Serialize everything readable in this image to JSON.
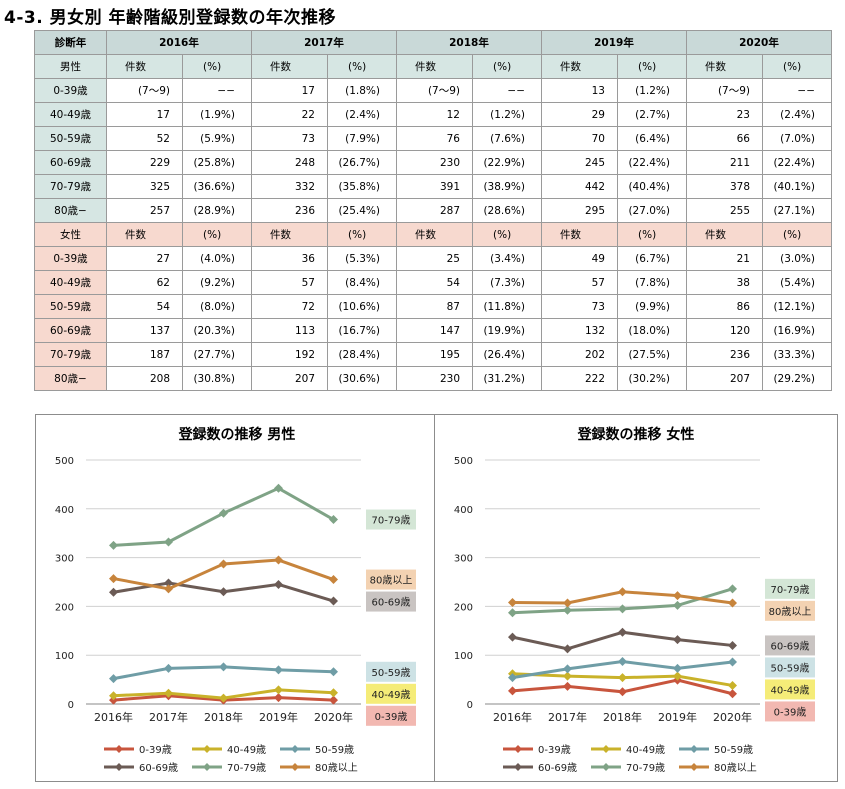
{
  "page": {
    "title": "4-3.  男女別  年齢階級別登録数の年次推移"
  },
  "table": {
    "corner": "診断年",
    "years": [
      "2016年",
      "2017年",
      "2018年",
      "2019年",
      "2020年"
    ],
    "count_header": "件数",
    "pct_header": "(%)",
    "male": {
      "label": "男性",
      "rows": [
        {
          "age": "0-39歳",
          "cells": [
            [
              "(7〜9)",
              "−−"
            ],
            [
              "17",
              "(1.8%)"
            ],
            [
              "(7〜9)",
              "−−"
            ],
            [
              "13",
              "(1.2%)"
            ],
            [
              "(7〜9)",
              "−−"
            ]
          ]
        },
        {
          "age": "40-49歳",
          "cells": [
            [
              "17",
              "(1.9%)"
            ],
            [
              "22",
              "(2.4%)"
            ],
            [
              "12",
              "(1.2%)"
            ],
            [
              "29",
              "(2.7%)"
            ],
            [
              "23",
              "(2.4%)"
            ]
          ]
        },
        {
          "age": "50-59歳",
          "cells": [
            [
              "52",
              "(5.9%)"
            ],
            [
              "73",
              "(7.9%)"
            ],
            [
              "76",
              "(7.6%)"
            ],
            [
              "70",
              "(6.4%)"
            ],
            [
              "66",
              "(7.0%)"
            ]
          ]
        },
        {
          "age": "60-69歳",
          "cells": [
            [
              "229",
              "(25.8%)"
            ],
            [
              "248",
              "(26.7%)"
            ],
            [
              "230",
              "(22.9%)"
            ],
            [
              "245",
              "(22.4%)"
            ],
            [
              "211",
              "(22.4%)"
            ]
          ]
        },
        {
          "age": "70-79歳",
          "cells": [
            [
              "325",
              "(36.6%)"
            ],
            [
              "332",
              "(35.8%)"
            ],
            [
              "391",
              "(38.9%)"
            ],
            [
              "442",
              "(40.4%)"
            ],
            [
              "378",
              "(40.1%)"
            ]
          ]
        },
        {
          "age": "80歳−",
          "cells": [
            [
              "257",
              "(28.9%)"
            ],
            [
              "236",
              "(25.4%)"
            ],
            [
              "287",
              "(28.6%)"
            ],
            [
              "295",
              "(27.0%)"
            ],
            [
              "255",
              "(27.1%)"
            ]
          ]
        }
      ]
    },
    "female": {
      "label": "女性",
      "rows": [
        {
          "age": "0-39歳",
          "cells": [
            [
              "27",
              "(4.0%)"
            ],
            [
              "36",
              "(5.3%)"
            ],
            [
              "25",
              "(3.4%)"
            ],
            [
              "49",
              "(6.7%)"
            ],
            [
              "21",
              "(3.0%)"
            ]
          ]
        },
        {
          "age": "40-49歳",
          "cells": [
            [
              "62",
              "(9.2%)"
            ],
            [
              "57",
              "(8.4%)"
            ],
            [
              "54",
              "(7.3%)"
            ],
            [
              "57",
              "(7.8%)"
            ],
            [
              "38",
              "(5.4%)"
            ]
          ]
        },
        {
          "age": "50-59歳",
          "cells": [
            [
              "54",
              "(8.0%)"
            ],
            [
              "72",
              "(10.6%)"
            ],
            [
              "87",
              "(11.8%)"
            ],
            [
              "73",
              "(9.9%)"
            ],
            [
              "86",
              "(12.1%)"
            ]
          ]
        },
        {
          "age": "60-69歳",
          "cells": [
            [
              "137",
              "(20.3%)"
            ],
            [
              "113",
              "(16.7%)"
            ],
            [
              "147",
              "(19.9%)"
            ],
            [
              "132",
              "(18.0%)"
            ],
            [
              "120",
              "(16.9%)"
            ]
          ]
        },
        {
          "age": "70-79歳",
          "cells": [
            [
              "187",
              "(27.7%)"
            ],
            [
              "192",
              "(28.4%)"
            ],
            [
              "195",
              "(26.4%)"
            ],
            [
              "202",
              "(27.5%)"
            ],
            [
              "236",
              "(33.3%)"
            ]
          ]
        },
        {
          "age": "80歳−",
          "cells": [
            [
              "208",
              "(30.8%)"
            ],
            [
              "207",
              "(30.6%)"
            ],
            [
              "230",
              "(31.2%)"
            ],
            [
              "222",
              "(30.2%)"
            ],
            [
              "207",
              "(29.2%)"
            ]
          ]
        }
      ]
    }
  },
  "chart_data": [
    {
      "type": "line",
      "title": "登録数の推移 男性",
      "xlabel": "",
      "ylabel": "",
      "x": [
        "2016年",
        "2017年",
        "2018年",
        "2019年",
        "2020年"
      ],
      "ylim": [
        0,
        500
      ],
      "yticks": [
        "0",
        "100",
        "200",
        "300",
        "400",
        "500"
      ],
      "grid": true,
      "legend_position": "bottom",
      "series": [
        {
          "name": "0-39歳",
          "color": "#c8553d",
          "values": [
            8,
            17,
            8,
            13,
            8
          ],
          "end_label": "0-39歳",
          "label_bg": "#f2b8b1"
        },
        {
          "name": "40-49歳",
          "color": "#c9b22a",
          "values": [
            17,
            22,
            12,
            29,
            23
          ],
          "end_label": "40-49歳",
          "label_bg": "#f5ec78"
        },
        {
          "name": "50-59歳",
          "color": "#6f9da6",
          "values": [
            52,
            73,
            76,
            70,
            66
          ],
          "end_label": "50-59歳",
          "label_bg": "#cde2e5"
        },
        {
          "name": "60-69歳",
          "color": "#6b5b55",
          "values": [
            229,
            248,
            230,
            245,
            211
          ],
          "end_label": "60-69歳",
          "label_bg": "#c9c4c2"
        },
        {
          "name": "70-79歳",
          "color": "#7fa386",
          "values": [
            325,
            332,
            391,
            442,
            378
          ],
          "end_label": "70-79歳",
          "label_bg": "#d4e6d6"
        },
        {
          "name": "80歳以上",
          "color": "#c7843c",
          "values": [
            257,
            236,
            287,
            295,
            255
          ],
          "end_label": "80歳以上",
          "label_bg": "#f3d2b2"
        }
      ]
    },
    {
      "type": "line",
      "title": "登録数の推移  女性",
      "xlabel": "",
      "ylabel": "",
      "x": [
        "2016年",
        "2017年",
        "2018年",
        "2019年",
        "2020年"
      ],
      "ylim": [
        0,
        500
      ],
      "yticks": [
        "0",
        "100",
        "200",
        "300",
        "400",
        "500"
      ],
      "grid": true,
      "legend_position": "bottom",
      "series": [
        {
          "name": "0-39歳",
          "color": "#c8553d",
          "values": [
            27,
            36,
            25,
            49,
            21
          ],
          "end_label": "0-39歳",
          "label_bg": "#f2b8b1"
        },
        {
          "name": "40-49歳",
          "color": "#c9b22a",
          "values": [
            62,
            57,
            54,
            57,
            38
          ],
          "end_label": "40-49歳",
          "label_bg": "#f5ec78"
        },
        {
          "name": "50-59歳",
          "color": "#6f9da6",
          "values": [
            54,
            72,
            87,
            73,
            86
          ],
          "end_label": "50-59歳",
          "label_bg": "#cde2e5"
        },
        {
          "name": "60-69歳",
          "color": "#6b5b55",
          "values": [
            137,
            113,
            147,
            132,
            120
          ],
          "end_label": "60-69歳",
          "label_bg": "#c9c4c2"
        },
        {
          "name": "70-79歳",
          "color": "#7fa386",
          "values": [
            187,
            192,
            195,
            202,
            236
          ],
          "end_label": "70-79歳",
          "label_bg": "#d4e6d6"
        },
        {
          "name": "80歳以上",
          "color": "#c7843c",
          "values": [
            208,
            207,
            230,
            222,
            207
          ],
          "end_label": "80歳以上",
          "label_bg": "#f3d2b2"
        }
      ]
    }
  ]
}
